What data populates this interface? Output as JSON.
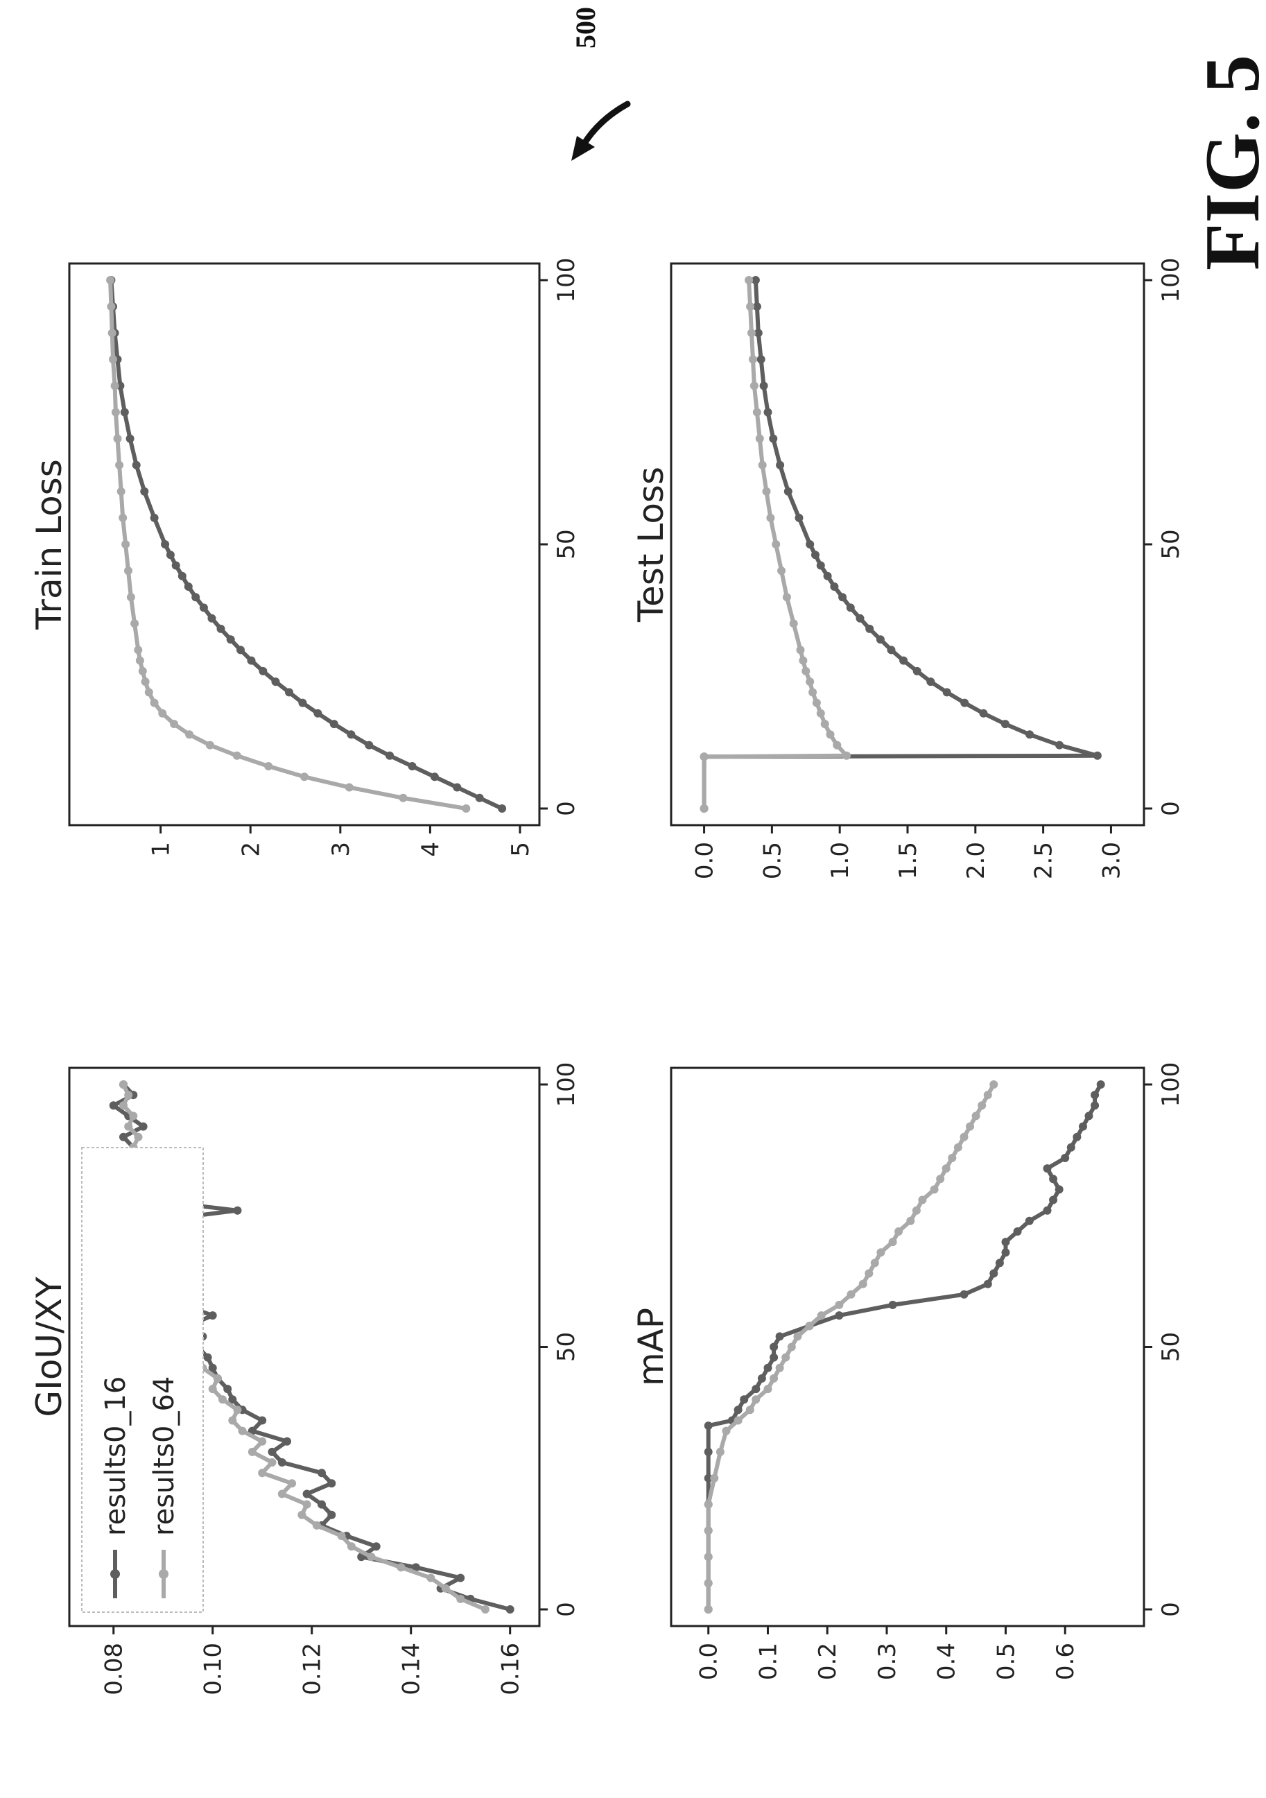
{
  "figure": {
    "label": "FIG. 5",
    "reference_number": "500"
  },
  "colors": {
    "results0_16": "#5e5e5e",
    "results0_64": "#a9a9a9",
    "axes": "#222222"
  },
  "chart_data": [
    {
      "id": "giou",
      "type": "line",
      "title": "GIoU/XY",
      "xlim": [
        0,
        100
      ],
      "ylim": [
        0.075,
        0.162
      ],
      "xticks": [
        "0",
        "50",
        "100"
      ],
      "yticks": [
        "0.16",
        "0.14",
        "0.12",
        "0.10",
        "0.08"
      ],
      "legend": {
        "placement": "top-right",
        "entries": [
          "results0_16",
          "results0_64"
        ]
      },
      "series": [
        {
          "name": "results0_16",
          "color": "#5e5e5e",
          "x": [
            0,
            2,
            4,
            6,
            8,
            10,
            12,
            14,
            16,
            18,
            20,
            22,
            24,
            26,
            28,
            30,
            32,
            34,
            36,
            38,
            40,
            42,
            44,
            46,
            48,
            50,
            52,
            54,
            56,
            58,
            60,
            62,
            64,
            66,
            68,
            70,
            72,
            74,
            76,
            78,
            80,
            82,
            84,
            86,
            88,
            90,
            92,
            94,
            96,
            98,
            100
          ],
          "y": [
            0.16,
            0.152,
            0.146,
            0.15,
            0.141,
            0.13,
            0.133,
            0.127,
            0.122,
            0.124,
            0.122,
            0.119,
            0.124,
            0.122,
            0.114,
            0.112,
            0.115,
            0.108,
            0.11,
            0.106,
            0.104,
            0.103,
            0.101,
            0.1,
            0.099,
            0.097,
            0.098,
            0.095,
            0.1,
            0.094,
            0.096,
            0.092,
            0.097,
            0.09,
            0.093,
            0.089,
            0.091,
            0.088,
            0.105,
            0.087,
            0.089,
            0.085,
            0.083,
            0.088,
            0.084,
            0.082,
            0.086,
            0.083,
            0.08,
            0.084,
            0.082
          ]
        },
        {
          "name": "results0_64",
          "color": "#a9a9a9",
          "x": [
            0,
            2,
            4,
            6,
            8,
            10,
            12,
            14,
            16,
            18,
            20,
            22,
            24,
            26,
            28,
            30,
            32,
            34,
            36,
            38,
            40,
            42,
            44,
            46,
            48,
            50,
            52,
            54,
            56,
            58,
            60,
            62,
            64,
            66,
            68,
            70,
            72,
            74,
            76,
            78,
            80,
            82,
            84,
            86,
            88,
            90,
            92,
            94,
            96,
            98,
            100
          ],
          "y": [
            0.155,
            0.15,
            0.147,
            0.144,
            0.138,
            0.132,
            0.128,
            0.126,
            0.121,
            0.118,
            0.119,
            0.114,
            0.116,
            0.11,
            0.112,
            0.108,
            0.11,
            0.106,
            0.104,
            0.105,
            0.102,
            0.1,
            0.101,
            0.098,
            0.097,
            0.096,
            0.095,
            0.097,
            0.093,
            0.094,
            0.092,
            0.093,
            0.09,
            0.091,
            0.089,
            0.09,
            0.088,
            0.089,
            0.087,
            0.088,
            0.086,
            0.087,
            0.085,
            0.086,
            0.084,
            0.085,
            0.083,
            0.084,
            0.082,
            0.083,
            0.082
          ]
        }
      ]
    },
    {
      "id": "train_loss",
      "type": "line",
      "title": "Train Loss",
      "xlim": [
        0,
        100
      ],
      "ylim": [
        0.2,
        5.0
      ],
      "xticks": [
        "0",
        "50",
        "100"
      ],
      "yticks": [
        "5",
        "4",
        "3",
        "2",
        "1"
      ],
      "series": [
        {
          "name": "results0_16",
          "color": "#5e5e5e",
          "x": [
            0,
            2,
            4,
            6,
            8,
            10,
            12,
            14,
            16,
            18,
            20,
            22,
            24,
            26,
            28,
            30,
            32,
            34,
            36,
            38,
            40,
            42,
            44,
            46,
            48,
            50,
            55,
            60,
            65,
            70,
            75,
            80,
            85,
            90,
            95,
            100
          ],
          "y": [
            4.8,
            4.55,
            4.3,
            4.05,
            3.8,
            3.55,
            3.32,
            3.12,
            2.93,
            2.75,
            2.58,
            2.43,
            2.28,
            2.14,
            2.01,
            1.89,
            1.78,
            1.67,
            1.57,
            1.48,
            1.39,
            1.31,
            1.24,
            1.17,
            1.11,
            1.05,
            0.93,
            0.82,
            0.73,
            0.66,
            0.6,
            0.55,
            0.52,
            0.49,
            0.47,
            0.45
          ]
        },
        {
          "name": "results0_64",
          "color": "#a9a9a9",
          "x": [
            0,
            2,
            4,
            6,
            8,
            10,
            12,
            14,
            16,
            18,
            20,
            22,
            24,
            26,
            28,
            30,
            35,
            40,
            45,
            50,
            55,
            60,
            65,
            70,
            75,
            80,
            85,
            90,
            95,
            100
          ],
          "y": [
            4.4,
            3.7,
            3.1,
            2.6,
            2.2,
            1.85,
            1.55,
            1.32,
            1.15,
            1.02,
            0.93,
            0.87,
            0.83,
            0.8,
            0.77,
            0.75,
            0.71,
            0.67,
            0.64,
            0.61,
            0.58,
            0.56,
            0.54,
            0.52,
            0.5,
            0.49,
            0.47,
            0.46,
            0.45,
            0.44
          ]
        }
      ]
    },
    {
      "id": "map",
      "type": "line",
      "title": "mAP",
      "xlim": [
        0,
        100
      ],
      "ylim": [
        -0.03,
        0.7
      ],
      "xticks": [
        "0",
        "50",
        "100"
      ],
      "yticks": [
        "0.6",
        "0.5",
        "0.4",
        "0.3",
        "0.2",
        "0.1",
        "0.0"
      ],
      "series": [
        {
          "name": "results0_16",
          "color": "#5e5e5e",
          "x": [
            0,
            5,
            10,
            15,
            20,
            25,
            30,
            35,
            36,
            38,
            40,
            42,
            44,
            46,
            48,
            50,
            52,
            54,
            56,
            58,
            60,
            62,
            64,
            66,
            68,
            70,
            72,
            74,
            76,
            78,
            80,
            82,
            84,
            86,
            88,
            90,
            92,
            94,
            96,
            98,
            100
          ],
          "y": [
            0.0,
            0.0,
            0.0,
            0.0,
            0.0,
            0.0,
            0.0,
            0.0,
            0.04,
            0.05,
            0.06,
            0.08,
            0.09,
            0.1,
            0.11,
            0.11,
            0.12,
            0.17,
            0.22,
            0.31,
            0.43,
            0.47,
            0.48,
            0.49,
            0.5,
            0.5,
            0.52,
            0.54,
            0.57,
            0.58,
            0.59,
            0.58,
            0.57,
            0.6,
            0.61,
            0.62,
            0.63,
            0.64,
            0.65,
            0.65,
            0.66
          ]
        },
        {
          "name": "results0_64",
          "color": "#a9a9a9",
          "x": [
            0,
            5,
            10,
            15,
            20,
            25,
            30,
            34,
            36,
            38,
            40,
            42,
            44,
            46,
            48,
            50,
            52,
            54,
            56,
            58,
            60,
            62,
            64,
            66,
            68,
            70,
            72,
            74,
            76,
            78,
            80,
            82,
            84,
            86,
            88,
            90,
            92,
            94,
            96,
            98,
            100
          ],
          "y": [
            0.0,
            0.0,
            0.0,
            0.0,
            0.0,
            0.01,
            0.02,
            0.03,
            0.05,
            0.07,
            0.08,
            0.1,
            0.11,
            0.12,
            0.13,
            0.14,
            0.15,
            0.17,
            0.19,
            0.22,
            0.24,
            0.26,
            0.27,
            0.28,
            0.29,
            0.31,
            0.32,
            0.34,
            0.35,
            0.36,
            0.38,
            0.39,
            0.4,
            0.41,
            0.42,
            0.43,
            0.44,
            0.45,
            0.46,
            0.47,
            0.48
          ]
        }
      ]
    },
    {
      "id": "test_loss",
      "type": "line",
      "title": "Test Loss",
      "xlim": [
        0,
        100
      ],
      "ylim": [
        -0.1,
        3.1
      ],
      "xticks": [
        "0",
        "50",
        "100"
      ],
      "yticks": [
        "3.0",
        "2.5",
        "2.0",
        "1.5",
        "1.0",
        "0.5",
        "0.0"
      ],
      "series": [
        {
          "name": "results0_16",
          "color": "#5e5e5e",
          "x": [
            0,
            9.8,
            10,
            12,
            14,
            16,
            18,
            20,
            22,
            24,
            26,
            28,
            30,
            32,
            34,
            36,
            38,
            40,
            42,
            44,
            46,
            48,
            50,
            55,
            60,
            65,
            70,
            75,
            80,
            85,
            90,
            95,
            100
          ],
          "y": [
            0.0,
            0.0,
            2.9,
            2.62,
            2.4,
            2.22,
            2.06,
            1.92,
            1.79,
            1.67,
            1.57,
            1.47,
            1.38,
            1.3,
            1.22,
            1.15,
            1.08,
            1.02,
            0.96,
            0.91,
            0.86,
            0.82,
            0.78,
            0.7,
            0.62,
            0.56,
            0.51,
            0.47,
            0.44,
            0.42,
            0.4,
            0.39,
            0.38
          ]
        },
        {
          "name": "results0_64",
          "color": "#a9a9a9",
          "x": [
            0,
            9.8,
            10,
            12,
            14,
            16,
            18,
            20,
            22,
            24,
            26,
            28,
            30,
            35,
            40,
            45,
            50,
            55,
            60,
            65,
            70,
            75,
            80,
            85,
            90,
            95,
            100
          ],
          "y": [
            0.0,
            0.0,
            1.05,
            0.98,
            0.93,
            0.89,
            0.86,
            0.83,
            0.8,
            0.78,
            0.75,
            0.73,
            0.71,
            0.66,
            0.61,
            0.57,
            0.53,
            0.49,
            0.46,
            0.43,
            0.41,
            0.39,
            0.37,
            0.36,
            0.35,
            0.34,
            0.33
          ]
        }
      ]
    }
  ]
}
